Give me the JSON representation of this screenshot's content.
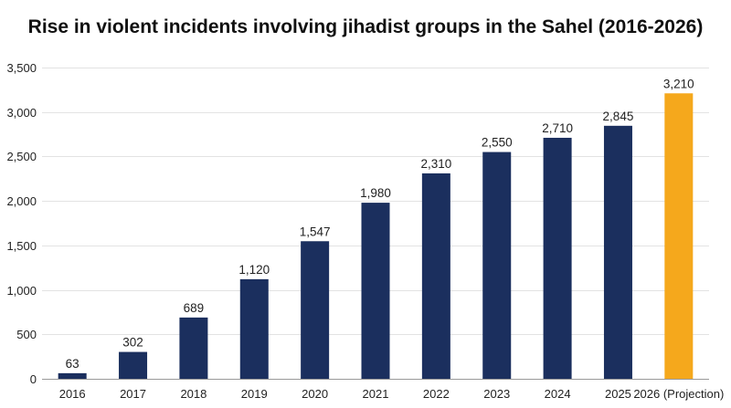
{
  "chart_data": {
    "type": "bar",
    "title": "Rise in violent incidents involving jihadist groups in the Sahel (2016-2026)",
    "xlabel": "",
    "ylabel": "",
    "categories": [
      "2016",
      "2017",
      "2018",
      "2019",
      "2020",
      "2021",
      "2022",
      "2023",
      "2024",
      "2025",
      "2026 (Projection)"
    ],
    "values": [
      63,
      302,
      689,
      1120,
      1547,
      1980,
      2310,
      2550,
      2710,
      2845,
      3210
    ],
    "value_labels": [
      "63",
      "302",
      "689",
      "1,120",
      "1,547",
      "1,980",
      "2,310",
      "2,550",
      "2,710",
      "2,845",
      "3,210"
    ],
    "y_ticks": [
      0,
      500,
      1000,
      1500,
      2000,
      2500,
      3000,
      3500
    ],
    "y_tick_labels": [
      "0",
      "500",
      "1,000",
      "1,500",
      "2,000",
      "2,500",
      "3,000",
      "3,500"
    ],
    "ylim": [
      0,
      3500
    ],
    "grid": true,
    "legend": "none",
    "colors": {
      "actual": "#1b2f5e",
      "projection": "#f5a81c"
    },
    "highlight_index": 10
  }
}
